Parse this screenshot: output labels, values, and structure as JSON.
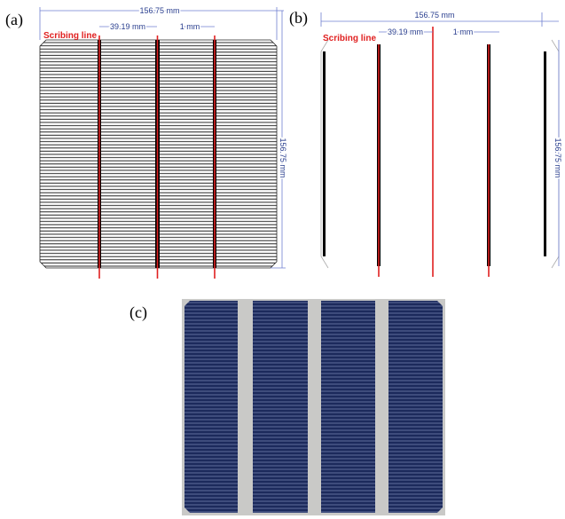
{
  "panels": [
    {
      "label": "(a)",
      "width_dim": "156.75 mm",
      "height_dim": "156.75 mm",
      "spacing_dim": "39.19 mm",
      "gap_dim": "1 mm",
      "scribing_label": "Scribing line"
    },
    {
      "label": "(b)",
      "width_dim": "156.75 mm",
      "height_dim": "156.75 mm",
      "spacing_dim": "39.19 mm",
      "gap_dim": "1 mm",
      "scribing_label": "Scribing line"
    },
    {
      "label": "(c)"
    }
  ]
}
